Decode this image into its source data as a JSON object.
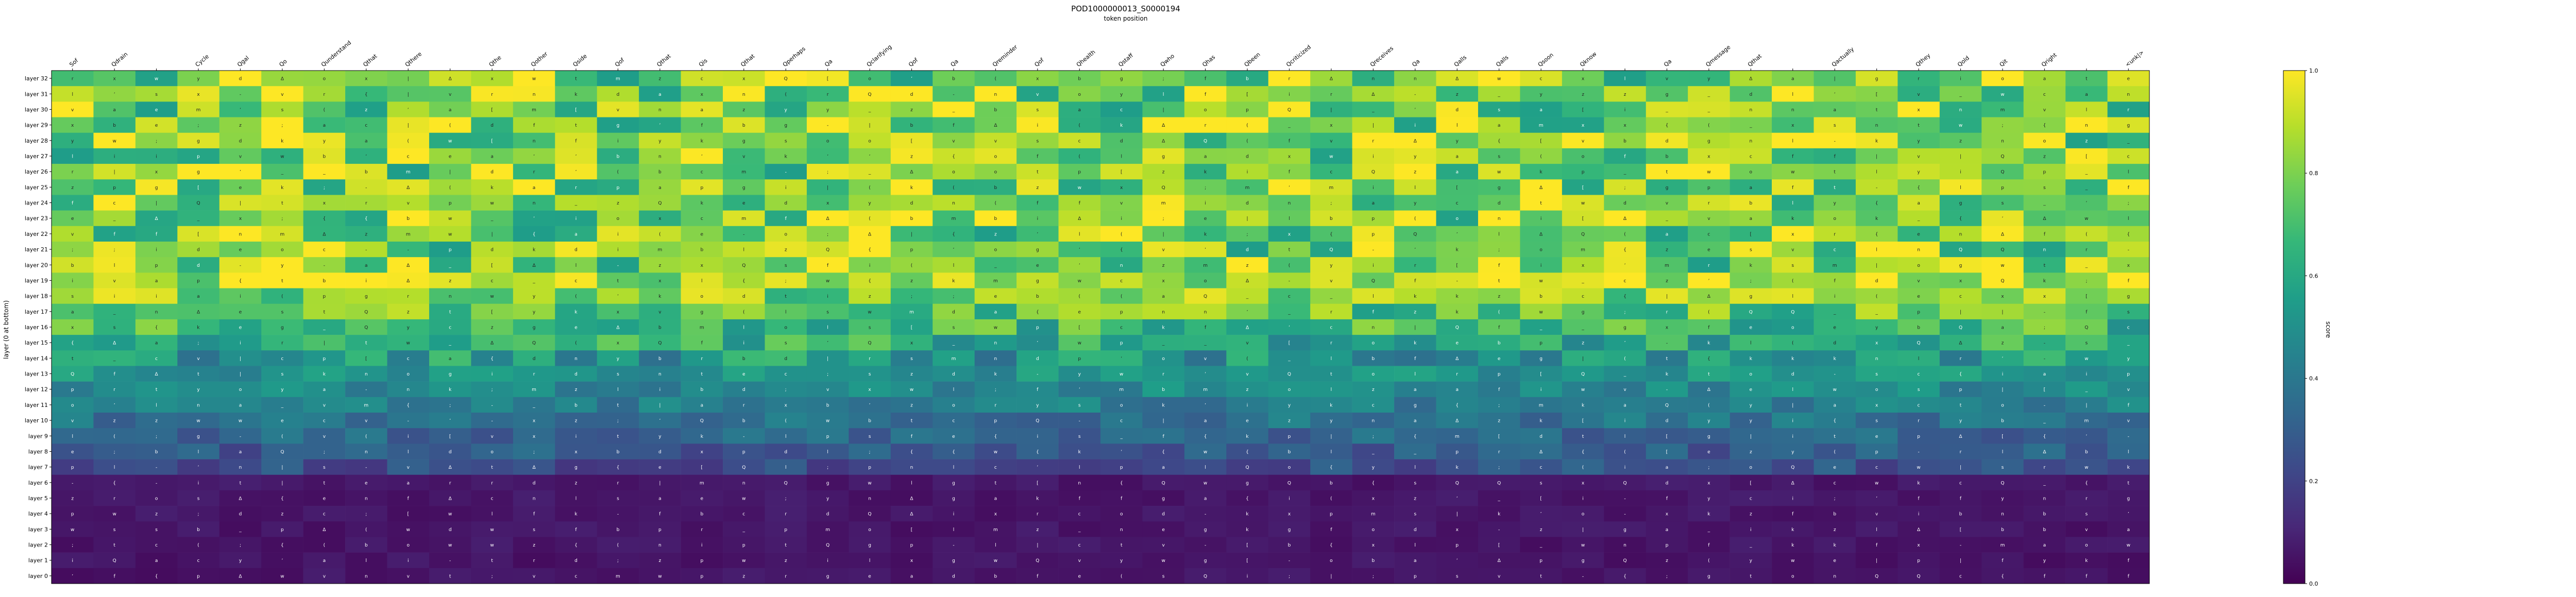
{
  "chart_data": {
    "type": "heatmap",
    "title": "POD1000000013_S0000194",
    "subtitle": "token position",
    "ylabel": "layer (0 at bottom)",
    "colorbar_label": "score",
    "colorbar_ticks": [
      "0.0",
      "0.2",
      "0.4",
      "0.6",
      "0.8",
      "1.0"
    ],
    "vmin": 0.0,
    "vmax": 1.0,
    "colormap": "viridis",
    "tokens": [
      "Sof",
      "Qdrain",
      "",
      "Cycle",
      "Qgal",
      "Qo",
      "Qunderstand",
      "Qthat",
      "Qthere",
      "",
      "Qthe",
      "Qother",
      "Qside",
      "Qof",
      "Qthat",
      "Qis",
      "Qthat",
      "Qperhaps",
      "Qa",
      "Qclarifying",
      "Qof",
      "Qa",
      "Qreminder",
      "Qof",
      "Qhealth",
      "Qstaff",
      "Qwho",
      "Qhas",
      "Qbeen",
      "Qcriticized",
      "",
      "Qreceives",
      "Qa",
      "Qalls",
      "Qalls",
      "Qsoon",
      "Qknow",
      "",
      "Qa",
      "Qmessage",
      "Qthat",
      "",
      "Qactually",
      "",
      "Qthey",
      "Qold",
      "Qit",
      "Qright",
      "",
      "<unk|>"
    ],
    "layers": [
      "layer 32",
      "layer 31",
      "layer 30",
      "layer 29",
      "layer 28",
      "layer 27",
      "layer 26",
      "layer 25",
      "layer 24",
      "layer 23",
      "layer 22",
      "layer 21",
      "layer 20",
      "layer 19",
      "layer 18",
      "layer 17",
      "layer 16",
      "layer 15",
      "layer 14",
      "layer 13",
      "layer 12",
      "layer 11",
      "layer 10",
      "layer 9",
      "layer 8",
      "layer 7",
      "layer 6",
      "layer 5",
      "layer 4",
      "layer 3",
      "layer 2",
      "layer 1",
      "layer 0"
    ],
    "cell_glyphs": [
      "Q",
      "Δ",
      "a",
      "t",
      "n",
      "e",
      "r",
      "i",
      "s",
      "o",
      "(",
      "[",
      "{",
      "|",
      "_",
      "-",
      ";",
      "’",
      "c",
      "l",
      "d",
      "g",
      "m",
      "p",
      "b",
      "f",
      "w",
      "y",
      "k",
      "v",
      "x",
      "z"
    ],
    "colors": {
      "viridis": [
        "#440154",
        "#482878",
        "#3e4989",
        "#31688e",
        "#26828e",
        "#1f9e89",
        "#35b779",
        "#6ece58",
        "#b5de2b",
        "#fde725"
      ]
    }
  }
}
